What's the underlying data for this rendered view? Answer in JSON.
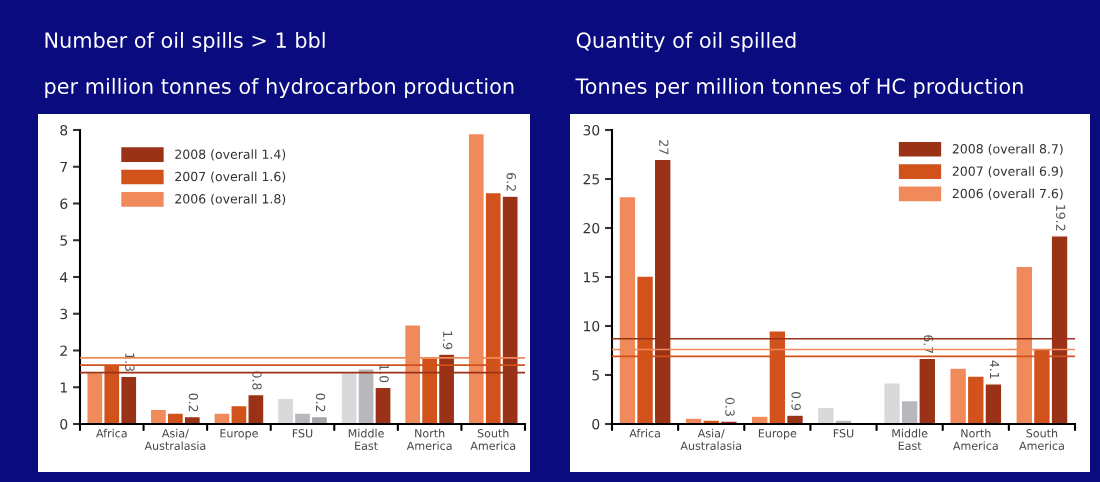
{
  "chart_data": [
    {
      "type": "bar",
      "title": "Number of oil spills > 1 bbl",
      "subtitle": "per million tonnes of hydrocarbon production",
      "categories": [
        "Africa",
        "Asia/\nAustralasia",
        "Europe",
        "FSU",
        "Middle\nEast",
        "North\nAmerica",
        "South\nAmerica"
      ],
      "series": [
        {
          "name": "2006 (overall 1.8)",
          "color": "#f08a5a",
          "colors": [
            "#f08a5a",
            "#f08a5a",
            "#f08a5a",
            "#d9d9db",
            "#d9d9db",
            "#f08a5a",
            "#f08a5a"
          ],
          "values": [
            1.4,
            0.4,
            0.3,
            0.7,
            1.4,
            2.7,
            7.9
          ]
        },
        {
          "name": "2007 (overall 1.6)",
          "color": "#d2521b",
          "colors": [
            "#d2521b",
            "#d2521b",
            "#d2521b",
            "#b8b8bc",
            "#b8b8bc",
            "#d2521b",
            "#d2521b"
          ],
          "values": [
            1.6,
            0.3,
            0.5,
            0.3,
            1.5,
            1.8,
            6.3
          ]
        },
        {
          "name": "2008 (overall 1.4)",
          "color": "#9a3218",
          "colors": [
            "#9a3218",
            "#9a3218",
            "#9a3218",
            "#a6a6aa",
            "#9a3218",
            "#9a3218",
            "#9a3218"
          ],
          "values": [
            1.3,
            0.2,
            0.8,
            0.2,
            1.0,
            1.9,
            6.2
          ],
          "value_labels": [
            "1.3",
            "0.2",
            "0.8",
            "0.2",
            "1.0",
            "1.9",
            "6.2"
          ]
        }
      ],
      "ylim": [
        0,
        8
      ],
      "yticks": [
        0,
        1,
        2,
        3,
        4,
        5,
        6,
        7,
        8
      ],
      "ref_lines": [
        {
          "axis": "y",
          "value": 1.8,
          "color": "#f08a5a"
        },
        {
          "axis": "y",
          "value": 1.6,
          "color": "#d2521b"
        },
        {
          "axis": "y",
          "value": 1.4,
          "color": "#9a3218"
        }
      ],
      "legend": "top left",
      "grid": false
    },
    {
      "type": "bar",
      "title": "Quantity of oil spilled",
      "subtitle": "Tonnes per million tonnes of HC production",
      "categories": [
        "Africa",
        "Asia/\nAustralasia",
        "Europe",
        "FSU",
        "Middle\nEast",
        "North\nAmerica",
        "South\nAmerica"
      ],
      "series": [
        {
          "name": "2006 (overall 7.6)",
          "color": "#f08a5a",
          "colors": [
            "#f08a5a",
            "#f08a5a",
            "#f08a5a",
            "#d9d9db",
            "#d9d9db",
            "#f08a5a",
            "#f08a5a"
          ],
          "values": [
            23.2,
            0.6,
            0.8,
            1.7,
            4.2,
            5.7,
            16.1
          ]
        },
        {
          "name": "2007 (overall 6.9)",
          "color": "#d2521b",
          "colors": [
            "#d2521b",
            "#d2521b",
            "#d2521b",
            "#b8b8bc",
            "#b8b8bc",
            "#d2521b",
            "#d2521b"
          ],
          "values": [
            15.1,
            0.4,
            9.5,
            0.4,
            2.4,
            4.9,
            7.7
          ]
        },
        {
          "name": "2008 (overall 8.7)",
          "color": "#9a3218",
          "colors": [
            "#9a3218",
            "#9a3218",
            "#9a3218",
            "#a6a6aa",
            "#9a3218",
            "#9a3218",
            "#9a3218"
          ],
          "values": [
            27,
            0.3,
            0.9,
            null,
            6.7,
            4.1,
            19.2
          ],
          "value_labels": [
            "27",
            "0.3",
            "0.9",
            null,
            "6.7",
            "4.1",
            "19.2"
          ]
        }
      ],
      "ylim": [
        0,
        30
      ],
      "yticks": [
        0,
        5,
        10,
        15,
        20,
        25,
        30
      ],
      "ref_lines": [
        {
          "axis": "y",
          "value": 8.7,
          "color": "#9a3218"
        },
        {
          "axis": "y",
          "value": 7.6,
          "color": "#f08a5a"
        },
        {
          "axis": "y",
          "value": 6.9,
          "color": "#d2521b"
        }
      ],
      "legend": "top right",
      "grid": false
    }
  ]
}
